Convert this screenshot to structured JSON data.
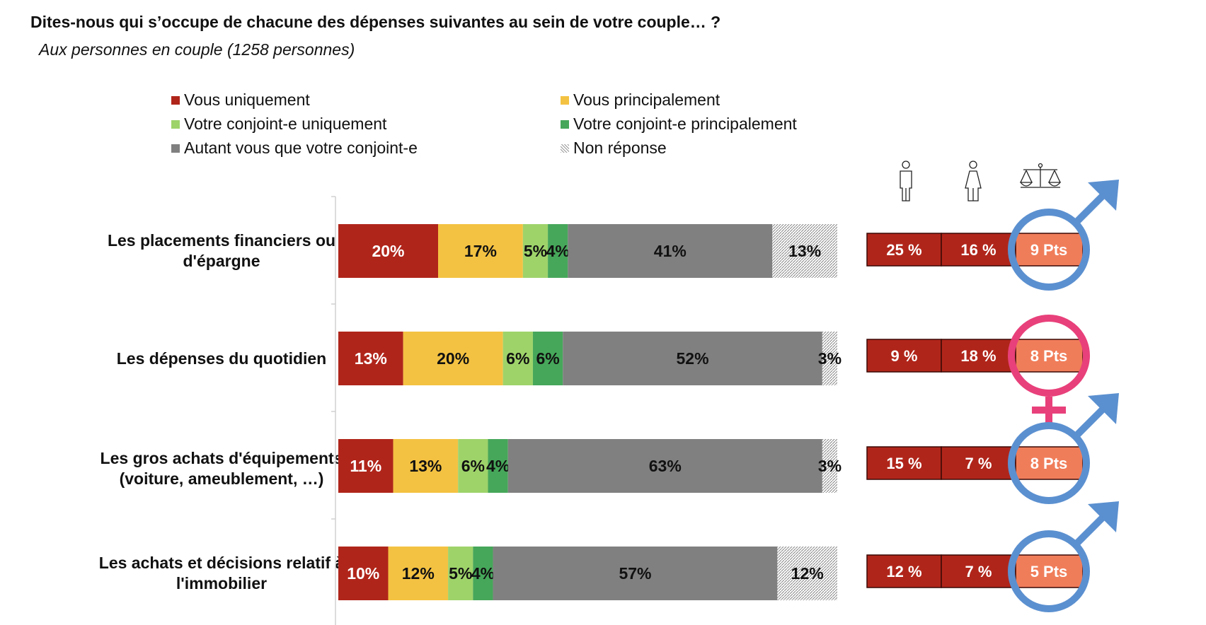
{
  "header": {
    "title": "Dites-nous qui s’occupe de chacune des dépenses suivantes au sein de votre couple… ?",
    "subtitle": "Aux personnes en couple (1258 personnes)"
  },
  "colors": {
    "vous_uniquement": "#b0251a",
    "vous_principalement": "#f4c242",
    "conjoint_uniquement": "#9ed36a",
    "conjoint_principalement": "#46a75a",
    "autant": "#808080",
    "non_reponse": "#c8c8c8",
    "gap_fill": "#f07d5a",
    "male_symbol": "#5b90d0",
    "female_symbol": "#e8407a"
  },
  "chart_data": {
    "type": "bar",
    "orientation": "horizontal-stacked-percent",
    "categories": [
      "Les placements financiers ou d'épargne",
      "Les dépenses du quotidien",
      "Les gros achats d'équipements (voiture, ameublement, …)",
      "Les achats et décisions relatif à l'immobilier"
    ],
    "series": [
      {
        "name": "Vous uniquement",
        "values": [
          20,
          13,
          11,
          10
        ]
      },
      {
        "name": "Vous principalement",
        "values": [
          17,
          20,
          13,
          12
        ]
      },
      {
        "name": "Votre conjoint-e uniquement",
        "values": [
          5,
          6,
          6,
          5
        ]
      },
      {
        "name": "Votre conjoint-e principalement",
        "values": [
          4,
          6,
          4,
          4
        ]
      },
      {
        "name": "Autant vous que votre conjoint-e",
        "values": [
          41,
          52,
          63,
          57
        ]
      },
      {
        "name": "Non réponse",
        "values": [
          13,
          3,
          3,
          12
        ]
      }
    ],
    "value_labels": [
      [
        "20%",
        "17%",
        "5%",
        "4%",
        "41%",
        "13%"
      ],
      [
        "13%",
        "20%",
        "6%",
        "6%",
        "52%",
        "3%"
      ],
      [
        "11%",
        "13%",
        "6%",
        "4%",
        "63%",
        "3%"
      ],
      [
        "10%",
        "12%",
        "5%",
        "4%",
        "57%",
        "12%"
      ]
    ],
    "legend_position": "top",
    "xlim": [
      0,
      100
    ],
    "side_table": {
      "columns": [
        "homme",
        "femme",
        "écart"
      ],
      "men": [
        25,
        9,
        15,
        12
      ],
      "women": [
        16,
        18,
        7,
        7
      ],
      "gap_points": [
        9,
        8,
        8,
        5
      ],
      "men_labels": [
        "25 %",
        "9 %",
        "15 %",
        "12 %"
      ],
      "women_labels": [
        "16 %",
        "18 %",
        "7 %",
        "7 %"
      ],
      "gap_labels": [
        "9 Pts",
        "8 Pts",
        "8 Pts",
        "5 Pts"
      ],
      "gender_symbols": [
        "male",
        "female",
        "male",
        "male"
      ]
    }
  }
}
